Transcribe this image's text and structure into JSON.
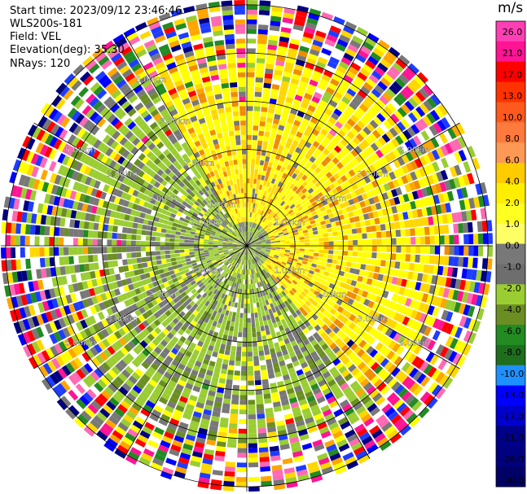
{
  "header": {
    "start_time": "Start time: 2023/09/12 23:46:46",
    "instrument": "WLS200s-181",
    "field": "Field: VEL",
    "elevation": "Elevation(deg): 35.30",
    "nrays": "NRays: 120"
  },
  "colorbar": {
    "title": "m/s",
    "ticks": [
      "26.0",
      "21.0",
      "17.0",
      "13.0",
      "10.0",
      "8.0",
      "6.0",
      "4.0",
      "2.0",
      "1.0",
      "0.0",
      "-1.0",
      "-2.0",
      "-4.0",
      "-6.0",
      "-8.0",
      "-10.0",
      "-13.0",
      "-17.0",
      "-21.0",
      "-26.0",
      "-30.0"
    ],
    "colors": [
      "#ff3fb4",
      "#ff1493",
      "#ff0000",
      "#ff3300",
      "#ff5a1e",
      "#ff7a3c",
      "#ff9955",
      "#ffcc00",
      "#ffee00",
      "#ffff20",
      "#ffff66",
      "#787878",
      "#6e6e6e",
      "#9acd32",
      "#6b8e23",
      "#228b22",
      "#1e6e1e",
      "#1e90ff",
      "#0000ff",
      "#0000cd",
      "#00008b",
      "#000080",
      "#000066"
    ]
  },
  "chart_data": {
    "type": "heatmap",
    "projection": "polar (PPI)",
    "field": "VEL",
    "units": "m/s",
    "color_range": [
      -30.0,
      26.0
    ],
    "range_ring_labels": [
      "1.00km",
      "2.00km",
      "3.00km",
      "5.00km"
    ],
    "ring_km": [
      1,
      2,
      3,
      4,
      5
    ],
    "max_range_km": 5.1,
    "nrays": 120,
    "spoke_angles_deg": [
      0,
      30,
      60,
      90,
      120,
      150,
      180,
      210,
      240,
      270,
      300,
      330
    ],
    "pattern": {
      "inner_northeast": "positive 2 to 6 m/s (yellow-orange)",
      "inner_southwest": "negative -1 to -4 m/s (olive / gray)",
      "outer_ring": "noisy, full color range"
    }
  }
}
